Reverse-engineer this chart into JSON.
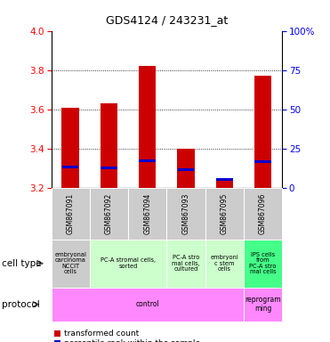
{
  "title": "GDS4124 / 243231_at",
  "samples": [
    "GSM867091",
    "GSM867092",
    "GSM867094",
    "GSM867093",
    "GSM867095",
    "GSM867096"
  ],
  "transformed_counts": [
    3.61,
    3.63,
    3.82,
    3.4,
    3.24,
    3.77
  ],
  "percentile_ranks": [
    13.5,
    13.0,
    17.5,
    11.5,
    5.5,
    17.0
  ],
  "ylim": [
    3.2,
    4.0
  ],
  "yticks": [
    3.2,
    3.4,
    3.6,
    3.8,
    4.0
  ],
  "right_ylim": [
    0,
    100
  ],
  "right_yticks": [
    0,
    25,
    50,
    75,
    100
  ],
  "right_yticklabels": [
    "0",
    "25",
    "50",
    "75",
    "100%"
  ],
  "bar_color": "#cc0000",
  "percentile_color": "#0000cc",
  "bar_width": 0.45,
  "cell_groups": [
    {
      "start": 0,
      "end": 0,
      "color": "#cccccc",
      "label": "embryonal\ncarcinoma\nNCCIT\ncells"
    },
    {
      "start": 1,
      "end": 2,
      "color": "#ccffcc",
      "label": "PC-A stromal cells,\nsorted"
    },
    {
      "start": 3,
      "end": 3,
      "color": "#ccffcc",
      "label": "PC-A stro\nmal cells,\ncultured"
    },
    {
      "start": 4,
      "end": 4,
      "color": "#ccffcc",
      "label": "embryoni\nc stem\ncells"
    },
    {
      "start": 5,
      "end": 5,
      "color": "#44ff88",
      "label": "IPS cells\nfrom\nPC-A stro\nmal cells"
    }
  ],
  "proto_groups": [
    {
      "start": 0,
      "end": 4,
      "color": "#ff88ff",
      "label": "control"
    },
    {
      "start": 5,
      "end": 5,
      "color": "#ff88ff",
      "label": "reprogram\nming"
    }
  ],
  "sample_bg": "#cccccc",
  "grid_yticks": [
    3.4,
    3.6,
    3.8
  ]
}
